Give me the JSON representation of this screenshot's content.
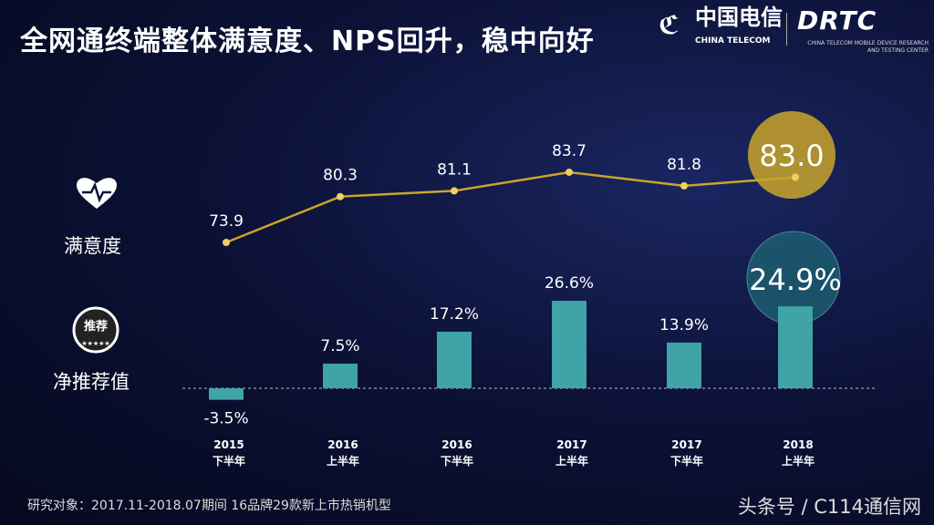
{
  "header": {
    "title": "全网通终端整体满意度、NPS回升，稳中向好",
    "logo_china_telecom_cn": "中国电信",
    "logo_china_telecom_en": "CHINA TELECOM",
    "logo_drtc": "DRTC",
    "logo_drtc_sub": "CHINA TELECOM MOBILE DEVICE RESEARCH AND TESTING CENTER"
  },
  "row_labels": {
    "satisfaction": "满意度",
    "nps": "净推荐值",
    "nps_badge": "推荐"
  },
  "footer": {
    "note": "研究对象：2017.11-2018.07期间 16品牌29款新上市热销机型",
    "watermark": "头条号 / C114通信网"
  },
  "chart_data": [
    {
      "type": "line",
      "series_label": "满意度",
      "categories": [
        [
          "2015",
          "下半年"
        ],
        [
          "2016",
          "上半年"
        ],
        [
          "2016",
          "下半年"
        ],
        [
          "2017",
          "上半年"
        ],
        [
          "2017",
          "下半年"
        ],
        [
          "2018",
          "上半年"
        ]
      ],
      "values": [
        73.9,
        80.3,
        81.1,
        83.7,
        81.8,
        83.0
      ],
      "labels": [
        "73.9",
        "80.3",
        "81.1",
        "83.7",
        "81.8",
        "83.0"
      ],
      "highlight_last": true,
      "color": "#c9a52c"
    },
    {
      "type": "bar",
      "series_label": "净推荐值",
      "categories": [
        [
          "2015",
          "下半年"
        ],
        [
          "2016",
          "上半年"
        ],
        [
          "2016",
          "下半年"
        ],
        [
          "2017",
          "上半年"
        ],
        [
          "2017",
          "下半年"
        ],
        [
          "2018",
          "上半年"
        ]
      ],
      "values": [
        -3.5,
        7.5,
        17.2,
        26.6,
        13.9,
        24.9
      ],
      "labels": [
        "-3.5%",
        "7.5%",
        "17.2%",
        "26.6%",
        "13.9%",
        "24.9%"
      ],
      "highlight_last": true,
      "color": "#3fa3a8"
    }
  ]
}
